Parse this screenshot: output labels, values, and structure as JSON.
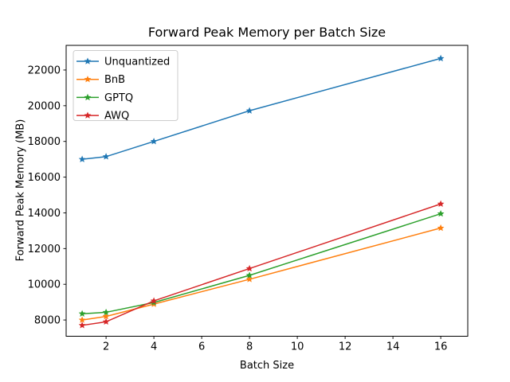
{
  "figure": {
    "background": "#ffffff",
    "text_color": "#000000",
    "axis_color": "#000000"
  },
  "chart_data": {
    "type": "line",
    "title": "Forward Peak Memory per Batch Size",
    "xlabel": "Batch Size",
    "ylabel": "Forward Peak Memory (MB)",
    "x": [
      1,
      2,
      4,
      8,
      16
    ],
    "series": [
      {
        "name": "Unquantized",
        "color": "#1f77b4",
        "values": [
          17000,
          17150,
          18000,
          19720,
          22650
        ]
      },
      {
        "name": "BnB",
        "color": "#ff7f0e",
        "values": [
          8000,
          8200,
          8890,
          10280,
          13150
        ]
      },
      {
        "name": "GPTQ",
        "color": "#2ca02c",
        "values": [
          8350,
          8430,
          8980,
          10500,
          13950
        ]
      },
      {
        "name": "AWQ",
        "color": "#d62728",
        "values": [
          7700,
          7900,
          9070,
          10880,
          14500
        ]
      }
    ],
    "x_ticks": [
      2,
      4,
      6,
      8,
      10,
      12,
      14,
      16
    ],
    "y_ticks": [
      8000,
      10000,
      12000,
      14000,
      16000,
      18000,
      20000,
      22000
    ],
    "xlim": [
      0.33,
      17.13
    ],
    "ylim": [
      7090,
      23380
    ],
    "grid": false,
    "legend_position": "upper left",
    "marker": "star",
    "line_width": 1.5
  }
}
